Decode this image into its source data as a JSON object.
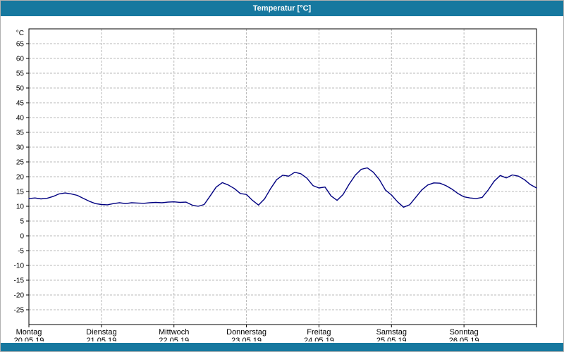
{
  "window": {
    "title": "Temperatur [°C]"
  },
  "colors": {
    "titlebar": "#16789f",
    "line": "#000080",
    "grid": "#b8b8b8",
    "plot_border": "#000000",
    "background": "#ffffff"
  },
  "chart_data": {
    "type": "line",
    "title": "Temperatur [°C]",
    "ylabel": "°C",
    "xlabel": "",
    "ylim": [
      -30,
      70
    ],
    "grid": true,
    "legend": "none",
    "yticks": [
      65,
      60,
      55,
      50,
      45,
      40,
      35,
      30,
      25,
      20,
      15,
      10,
      5,
      0,
      -5,
      -10,
      -15,
      -20,
      -25
    ],
    "x_days": [
      {
        "name": "Montag",
        "date": "20.05.19"
      },
      {
        "name": "Dienstag",
        "date": "21.05.19"
      },
      {
        "name": "Mittwoch",
        "date": "22.05.19"
      },
      {
        "name": "Donnerstag",
        "date": "23.05.19"
      },
      {
        "name": "Freitag",
        "date": "24.05.19"
      },
      {
        "name": "Samstag",
        "date": "25.05.19"
      },
      {
        "name": "Sonntag",
        "date": "26.05.19"
      }
    ],
    "series": [
      {
        "name": "Temperatur",
        "color": "#000080",
        "x_step_hours": 2,
        "x_total_hours": 168,
        "values": [
          12.6,
          12.8,
          12.5,
          12.7,
          13.3,
          14.2,
          14.5,
          14.2,
          13.7,
          12.7,
          11.7,
          10.9,
          10.6,
          10.5,
          10.9,
          11.2,
          10.9,
          11.2,
          11.1,
          11.0,
          11.2,
          11.3,
          11.2,
          11.4,
          11.5,
          11.3,
          11.4,
          10.4,
          10.0,
          10.6,
          13.5,
          16.5,
          18.0,
          17.2,
          16.0,
          14.3,
          14.0,
          12.0,
          10.4,
          12.5,
          16.0,
          19.0,
          20.5,
          20.2,
          21.5,
          21.0,
          19.5,
          17.0,
          16.2,
          16.5,
          13.5,
          12.0,
          14.0,
          17.5,
          20.5,
          22.5,
          23.0,
          21.5,
          19.0,
          15.5,
          13.8,
          11.5,
          9.7,
          10.5,
          13.0,
          15.5,
          17.2,
          17.9,
          17.8,
          17.0,
          15.8,
          14.3,
          13.2,
          12.8,
          12.6,
          13.0,
          15.5,
          18.5,
          20.4,
          19.6,
          20.6,
          20.2,
          19.0,
          17.3,
          16.2
        ]
      }
    ]
  }
}
